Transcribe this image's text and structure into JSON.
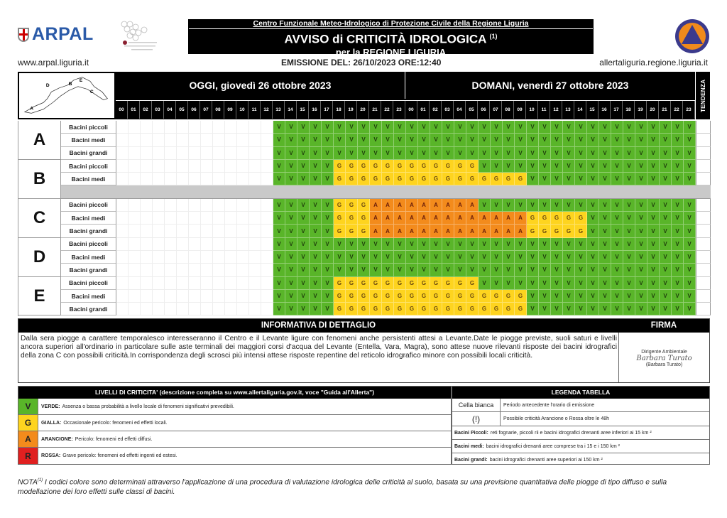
{
  "header": {
    "arpal_logo_text": "ARPAL",
    "partner_logo_text": "Centro Funzionale",
    "subtitle": "Centro Funzionale Meteo-Idrologico di Protezione Civile della Regione Liguria",
    "title": "AVVISO di CRITICITÀ IDROLOGICA",
    "title_note": "(1)",
    "region": "per la REGIONE LIGURIA",
    "site_left": "www.arpal.liguria.it",
    "emission": "EMISSIONE DEL: 26/10/2023 ORE:12:40",
    "site_right": "allertaliguria.regione.liguria.it"
  },
  "table": {
    "map_labels": [
      "A",
      "D",
      "B",
      "E",
      "C"
    ],
    "today": "OGGI, giovedì 26 ottobre 2023",
    "tomorrow": "DOMANI, venerdì 27 ottobre 2023",
    "tendency": "TENDENZA",
    "hours_today": [
      "00",
      "01",
      "02",
      "03",
      "04",
      "05",
      "06",
      "07",
      "08",
      "09",
      "10",
      "11",
      "12",
      "13",
      "14",
      "15",
      "16",
      "17",
      "18",
      "19",
      "20",
      "21",
      "22",
      "23"
    ],
    "hours_tomorrow": [
      "00",
      "01",
      "02",
      "03",
      "04",
      "05",
      "06",
      "07",
      "08",
      "09",
      "10",
      "11",
      "12",
      "13",
      "14",
      "15",
      "16",
      "17",
      "18",
      "19",
      "20",
      "21",
      "22",
      "23"
    ],
    "level_colors": {
      "V": "#59b529",
      "G": "#fed41f",
      "A": "#f38b1c",
      "R": "#e02020",
      "W": "#ffffff"
    },
    "zones": [
      {
        "zone": "A",
        "gray_row": false,
        "rows": [
          {
            "label": "Bacini piccoli",
            "runs": [
              [
                "W",
                13
              ],
              [
                "V",
                35
              ]
            ]
          },
          {
            "label": "Bacini medi",
            "runs": [
              [
                "W",
                13
              ],
              [
                "V",
                35
              ]
            ]
          },
          {
            "label": "Bacini grandi",
            "runs": [
              [
                "W",
                13
              ],
              [
                "V",
                35
              ]
            ]
          }
        ]
      },
      {
        "zone": "B",
        "gray_row": true,
        "rows": [
          {
            "label": "Bacini piccoli",
            "runs": [
              [
                "W",
                13
              ],
              [
                "V",
                5
              ],
              [
                "G",
                12
              ],
              [
                "V",
                18
              ]
            ]
          },
          {
            "label": "Bacini medi",
            "runs": [
              [
                "W",
                13
              ],
              [
                "V",
                5
              ],
              [
                "G",
                16
              ],
              [
                "V",
                14
              ]
            ]
          }
        ]
      },
      {
        "zone": "C",
        "gray_row": false,
        "rows": [
          {
            "label": "Bacini piccoli",
            "runs": [
              [
                "W",
                13
              ],
              [
                "V",
                5
              ],
              [
                "G",
                3
              ],
              [
                "A",
                9
              ],
              [
                "V",
                18
              ]
            ]
          },
          {
            "label": "Bacini medi",
            "runs": [
              [
                "W",
                13
              ],
              [
                "V",
                5
              ],
              [
                "G",
                3
              ],
              [
                "A",
                13
              ],
              [
                "G",
                5
              ],
              [
                "V",
                9
              ]
            ]
          },
          {
            "label": "Bacini grandi",
            "runs": [
              [
                "W",
                13
              ],
              [
                "V",
                5
              ],
              [
                "G",
                3
              ],
              [
                "A",
                13
              ],
              [
                "G",
                5
              ],
              [
                "V",
                9
              ]
            ]
          }
        ]
      },
      {
        "zone": "D",
        "gray_row": false,
        "rows": [
          {
            "label": "Bacini piccoli",
            "runs": [
              [
                "W",
                13
              ],
              [
                "V",
                35
              ]
            ]
          },
          {
            "label": "Bacini medi",
            "runs": [
              [
                "W",
                13
              ],
              [
                "V",
                35
              ]
            ]
          },
          {
            "label": "Bacini grandi",
            "runs": [
              [
                "W",
                13
              ],
              [
                "V",
                35
              ]
            ]
          }
        ]
      },
      {
        "zone": "E",
        "gray_row": false,
        "rows": [
          {
            "label": "Bacini piccoli",
            "runs": [
              [
                "W",
                13
              ],
              [
                "V",
                5
              ],
              [
                "G",
                12
              ],
              [
                "V",
                18
              ]
            ]
          },
          {
            "label": "Bacini medi",
            "runs": [
              [
                "W",
                13
              ],
              [
                "V",
                5
              ],
              [
                "G",
                16
              ],
              [
                "V",
                14
              ]
            ]
          },
          {
            "label": "Bacini grandi",
            "runs": [
              [
                "W",
                13
              ],
              [
                "V",
                5
              ],
              [
                "G",
                16
              ],
              [
                "V",
                14
              ]
            ]
          }
        ]
      }
    ]
  },
  "info": {
    "heading": "INFORMATIVA DI DETTAGLIO",
    "signature_heading": "FIRMA",
    "text": "Dalla sera piogge a carattere temporalesco interesseranno il Centro e il Levante ligure con fenomeni anche persistenti attesi a Levante.Date le piogge previste, suoli saturi e livelli ancora superiori all'ordinario in particolare sulle aste terminali dei maggiori corsi d'acqua del Levante (Entella, Vara, Magra), sono attese nuove rilevanti risposte dei bacini idrografici della zona C con possibili criticità.In corrispondenza degli scrosci più intensi attese risposte repentine del reticolo idrografico minore con possibili locali criticità.",
    "signer_role": "Dirigente Ambientale",
    "signature": "Barbara Turato",
    "signer_name": "(Barbara Turato)"
  },
  "levels": {
    "heading": "LIVELLI DI CRITICITA' (descrizione completa su www.allertaliguria.gov.it, voce \"Guida all'Allerta\")",
    "items": [
      {
        "code": "V",
        "name": "VERDE:",
        "desc": "Assenza o bassa probabilità a livello locale di fenomeni significativi prevedibili."
      },
      {
        "code": "G",
        "name": "GIALLA:",
        "desc": "Occasionale pericolo: fenomeni ed effetti locali."
      },
      {
        "code": "A",
        "name": "ARANCIONE:",
        "desc": "Pericolo: fenomeni ed effetti diffusi."
      },
      {
        "code": "R",
        "name": "ROSSA:",
        "desc": "Grave pericolo: fenomeni ed effetti ingenti ed estesi."
      }
    ]
  },
  "legend": {
    "heading": "LEGENDA TABELLA",
    "white_cell_key": "Cella bianca",
    "white_cell_desc": "Periodo antecedente l'orario di emissione",
    "excl_key": "(!)",
    "excl_desc": "Possibile criticità Arancione o Rossa oltre le 48h",
    "small_key": "Bacini Piccoli:",
    "small_desc": "reti fognarie, piccoli rii e bacini idrografici drenanti aree inferiori ai 15 km ²",
    "medium_key": "Bacini medi:",
    "medium_desc": "bacini idrografici drenanti aree comprese tra i 15 e i 150 km ²",
    "large_key": "Bacini grandi:",
    "large_desc": "bacini idrografici drenanti aree superiori ai 150 km ²"
  },
  "note": {
    "label": "NOTA",
    "mark": "(1)",
    "text": " I codici colore sono determinati attraverso l'applicazione di una procedura di valutazione idrologica delle criticità al suolo, basata su una previsione quantitativa delle piogge di tipo diffuso e sulla modellazione dei loro effetti sulle classi di bacini."
  }
}
